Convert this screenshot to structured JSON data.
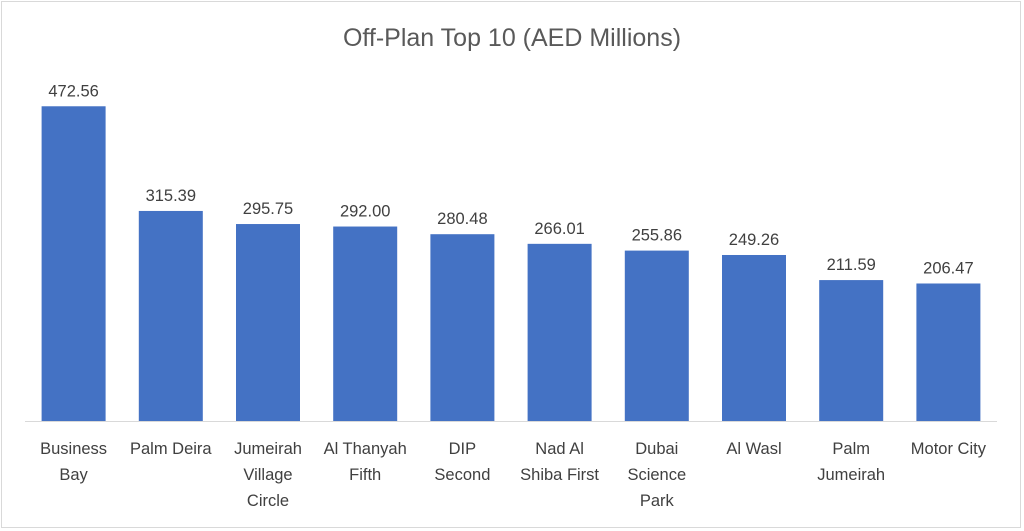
{
  "chart_data": {
    "type": "bar",
    "title": "Off-Plan Top 10 (AED Millions)",
    "xlabel": "",
    "ylabel": "",
    "ylim": [
      0,
      500
    ],
    "grid": false,
    "categories": [
      [
        "Business",
        "Bay"
      ],
      [
        "Palm Deira"
      ],
      [
        "Jumeirah",
        "Village",
        "Circle"
      ],
      [
        "Al Thanyah",
        "Fifth"
      ],
      [
        "DIP",
        "Second"
      ],
      [
        "Nad Al",
        "Shiba First"
      ],
      [
        "Dubai",
        "Science",
        "Park"
      ],
      [
        "Al Wasl"
      ],
      [
        "Palm",
        "Jumeirah"
      ],
      [
        "Motor City"
      ]
    ],
    "values": [
      472.56,
      315.39,
      295.75,
      292.0,
      280.48,
      266.01,
      255.86,
      249.26,
      211.59,
      206.47
    ],
    "labels": [
      "472.56",
      "315.39",
      "295.75",
      "292.00",
      "280.48",
      "266.01",
      "255.86",
      "249.26",
      "211.59",
      "206.47"
    ],
    "bar_color": "#4472c4"
  }
}
